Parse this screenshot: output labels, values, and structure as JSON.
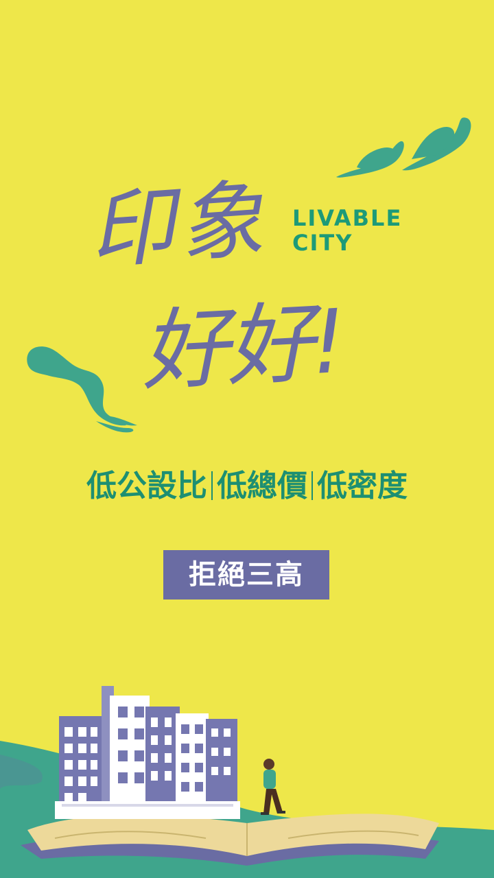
{
  "title": {
    "calligraphy_line1": "印象",
    "calligraphy_line2": "好好!",
    "english_line1": "LIVABLE",
    "english_line2": "CITY"
  },
  "tagline": {
    "items": [
      "低公設比",
      "低總價",
      "低密度"
    ]
  },
  "badge": {
    "label": "拒絕三高"
  },
  "colors": {
    "background": "#EEE74A",
    "accent_green": "#1D9A78",
    "leaf_green": "#3FA58C",
    "purple": "#6A6CA3",
    "book": "#EDD99A"
  }
}
